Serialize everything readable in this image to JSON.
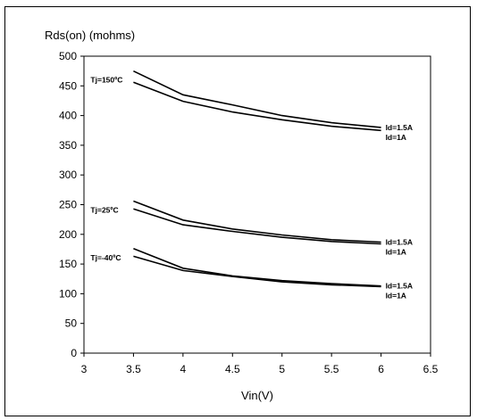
{
  "chart_data": {
    "type": "line",
    "title": "",
    "ylabel": "Rds(on) (mohms)",
    "xlabel": "Vin(V)",
    "xlim": [
      3,
      6.5
    ],
    "ylim": [
      0,
      500
    ],
    "xticks": [
      "3",
      "3.5",
      "4",
      "4.5",
      "5",
      "5.5",
      "6",
      "6.5"
    ],
    "yticks": [
      "0",
      "50",
      "100",
      "150",
      "200",
      "250",
      "300",
      "350",
      "400",
      "450",
      "500"
    ],
    "grid": false,
    "line_color": "#000000",
    "x": [
      3.5,
      4,
      4.5,
      5,
      5.5,
      6
    ],
    "groups": [
      {
        "label": "Tj=150ºC",
        "series": [
          {
            "name": "Id=1.5A",
            "values": [
              475,
              435,
              418,
              400,
              388,
              380
            ]
          },
          {
            "name": "Id=1A",
            "values": [
              456,
              424,
              406,
              393,
              382,
              375
            ]
          }
        ]
      },
      {
        "label": "Tj=25ºC",
        "series": [
          {
            "name": "Id=1.5A",
            "values": [
              256,
              224,
              209,
              199,
              191,
              187
            ]
          },
          {
            "name": "Id=1A",
            "values": [
              243,
              216,
              205,
              195,
              188,
              184
            ]
          }
        ]
      },
      {
        "label": "Tj=-40ºC",
        "series": [
          {
            "name": "Id=1.5A",
            "values": [
              176,
              143,
              130,
              122,
              117,
              113
            ]
          },
          {
            "name": "Id=1A",
            "values": [
              163,
              139,
              129,
              120,
              115,
              112
            ]
          }
        ]
      }
    ]
  }
}
